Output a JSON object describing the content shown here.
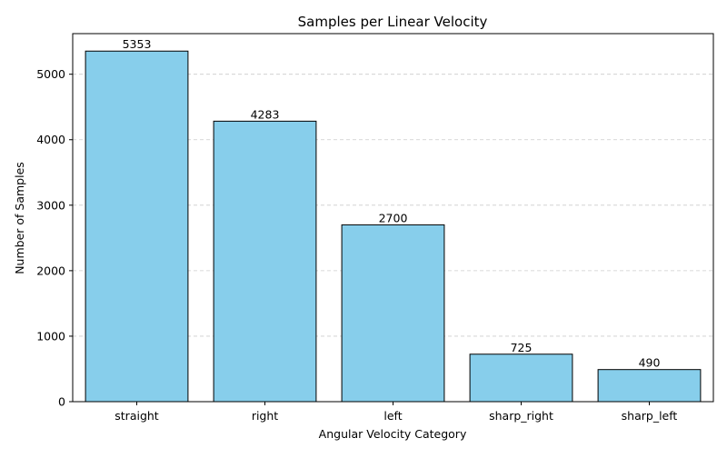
{
  "chart_data": {
    "type": "bar",
    "title": "Samples per Linear Velocity",
    "xlabel": "Angular Velocity Category",
    "ylabel": "Number of Samples",
    "categories": [
      "straight",
      "right",
      "left",
      "sharp_right",
      "sharp_left"
    ],
    "values": [
      5353,
      4283,
      2700,
      725,
      490
    ],
    "data_labels": [
      "5353",
      "4283",
      "2700",
      "725",
      "490"
    ],
    "ylim": [
      0,
      5620
    ],
    "yticks": [
      0,
      1000,
      2000,
      3000,
      4000,
      5000
    ],
    "ytick_labels": [
      "0",
      "1000",
      "2000",
      "3000",
      "4000",
      "5000"
    ],
    "grid": "y-dashed",
    "legend": "none"
  },
  "colors": {
    "bar_fill": "#87ceeb",
    "bar_edge": "#000000",
    "grid": "#cccccc",
    "axis": "#000000"
  }
}
